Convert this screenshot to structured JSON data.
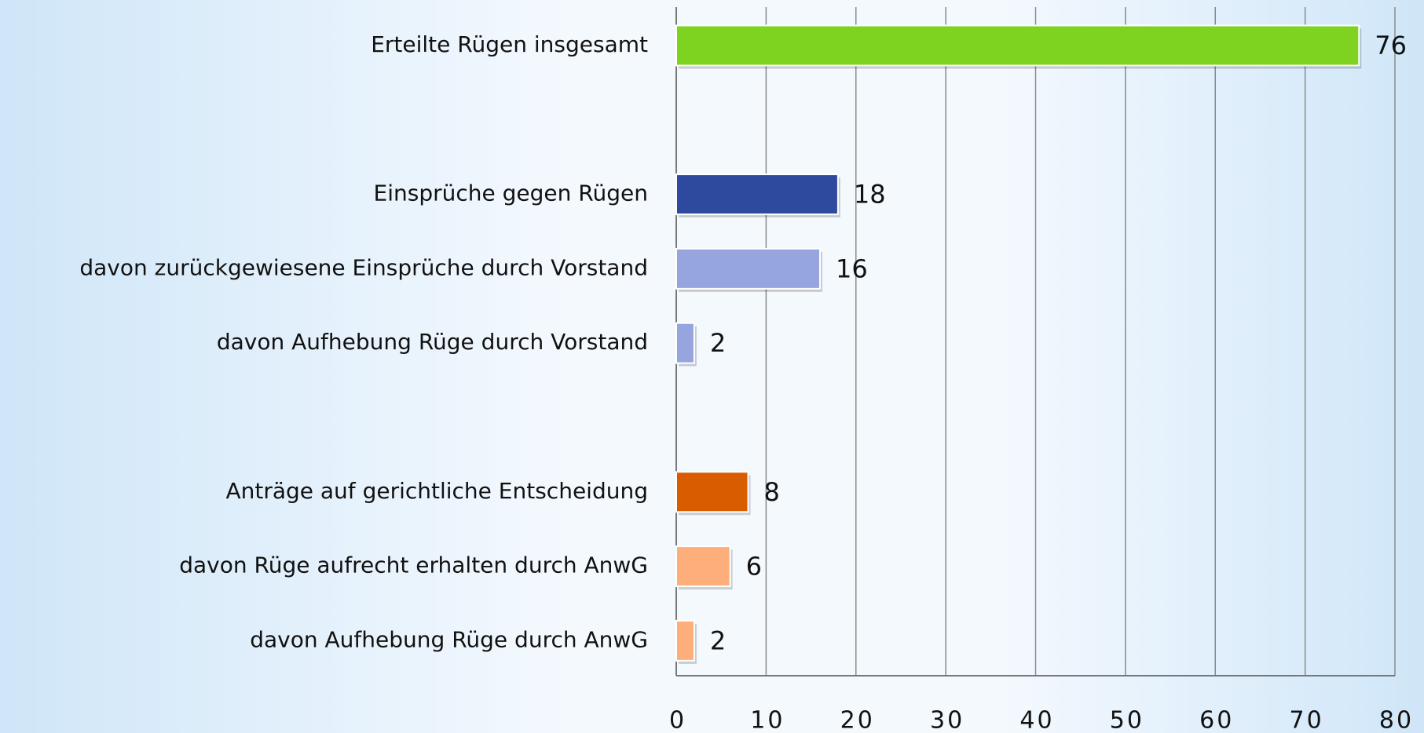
{
  "chart_data": {
    "type": "bar",
    "orientation": "horizontal",
    "categories": [
      "Erteilte Rügen insgesamt",
      null,
      "Einsprüche gegen Rügen",
      "davon zurückgewiesene Einsprüche durch Vorstand",
      "davon Aufhebung Rüge durch Vorstand",
      null,
      "Anträge auf gerichtliche Entscheidung",
      "davon Rüge aufrecht erhalten durch AnwG",
      "davon Aufhebung Rüge durch AnwG"
    ],
    "values": [
      76,
      null,
      18,
      16,
      2,
      null,
      8,
      6,
      2
    ],
    "colors": [
      "#7ed321",
      null,
      "#2e4a9e",
      "#97a5de",
      "#97a5de",
      null,
      "#d95d00",
      "#fdae7a",
      "#fdae7a"
    ],
    "xlim": [
      0,
      80
    ],
    "xticks": [
      0,
      10,
      20,
      30,
      40,
      50,
      60,
      70,
      80
    ],
    "grid": true
  }
}
